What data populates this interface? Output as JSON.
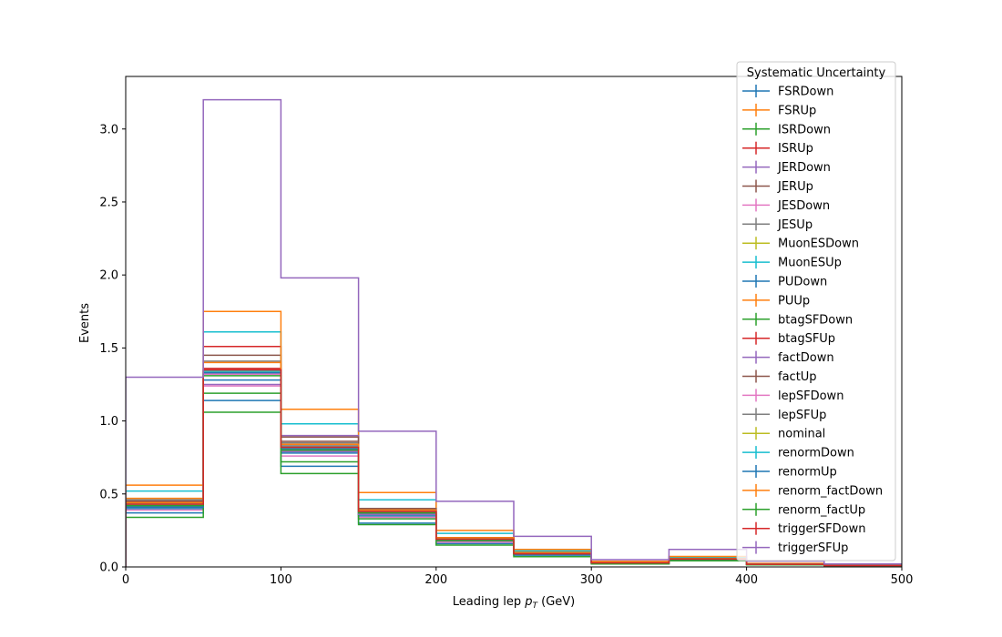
{
  "chart_data": {
    "type": "histogram-step",
    "xlabel_main": "Leading lep ",
    "xlabel_var": "p",
    "xlabel_sub": "T",
    "xlabel_unit": " (GeV)",
    "ylabel": "Events",
    "xlim": [
      0,
      500
    ],
    "ylim": [
      0,
      3.36
    ],
    "x_ticks": [
      0,
      100,
      200,
      300,
      400,
      500
    ],
    "y_ticks": [
      0.0,
      0.5,
      1.0,
      1.5,
      2.0,
      2.5,
      3.0
    ],
    "bin_edges": [
      0,
      50,
      100,
      150,
      200,
      250,
      300,
      350,
      400,
      450,
      500
    ],
    "legend_title": "Systematic Uncertainty",
    "legend_position": "top-right",
    "series": [
      {
        "name": "FSRDown",
        "color": "#1f77b4",
        "values": [
          0.37,
          1.14,
          0.69,
          0.3,
          0.16,
          0.08,
          0.02,
          0.045,
          0.015,
          0.008
        ]
      },
      {
        "name": "FSRUp",
        "color": "#ff7f0e",
        "values": [
          0.47,
          1.33,
          0.84,
          0.39,
          0.2,
          0.1,
          0.03,
          0.06,
          0.02,
          0.01
        ]
      },
      {
        "name": "ISRDown",
        "color": "#2ca02c",
        "values": [
          0.41,
          1.19,
          0.72,
          0.33,
          0.17,
          0.09,
          0.025,
          0.05,
          0.017,
          0.009
        ]
      },
      {
        "name": "ISRUp",
        "color": "#d62728",
        "values": [
          0.45,
          1.51,
          0.8,
          0.37,
          0.19,
          0.1,
          0.03,
          0.055,
          0.019,
          0.01
        ]
      },
      {
        "name": "JERDown",
        "color": "#9467bd",
        "values": [
          0.42,
          1.25,
          0.79,
          0.36,
          0.18,
          0.09,
          0.027,
          0.052,
          0.018,
          0.009
        ]
      },
      {
        "name": "JERUp",
        "color": "#8c564b",
        "values": [
          0.44,
          1.45,
          0.86,
          0.4,
          0.2,
          0.1,
          0.03,
          0.058,
          0.02,
          0.01
        ]
      },
      {
        "name": "JESDown",
        "color": "#e377c2",
        "values": [
          0.39,
          1.24,
          0.76,
          0.34,
          0.17,
          0.09,
          0.025,
          0.05,
          0.017,
          0.009
        ]
      },
      {
        "name": "JESUp",
        "color": "#7f7f7f",
        "values": [
          0.46,
          1.41,
          0.85,
          0.39,
          0.2,
          0.1,
          0.03,
          0.058,
          0.02,
          0.01
        ]
      },
      {
        "name": "MuonESDown",
        "color": "#bcbd22",
        "values": [
          0.43,
          1.34,
          0.81,
          0.37,
          0.19,
          0.09,
          0.028,
          0.054,
          0.018,
          0.009
        ]
      },
      {
        "name": "MuonESUp",
        "color": "#17becf",
        "values": [
          0.52,
          1.61,
          0.98,
          0.46,
          0.23,
          0.11,
          0.035,
          0.066,
          0.022,
          0.011
        ]
      },
      {
        "name": "PUDown",
        "color": "#1f77b4",
        "values": [
          0.4,
          1.28,
          0.78,
          0.35,
          0.18,
          0.09,
          0.026,
          0.051,
          0.017,
          0.009
        ]
      },
      {
        "name": "PUUp",
        "color": "#ff7f0e",
        "values": [
          0.56,
          1.75,
          1.08,
          0.51,
          0.25,
          0.12,
          0.038,
          0.072,
          0.024,
          0.012
        ]
      },
      {
        "name": "btagSFDown",
        "color": "#2ca02c",
        "values": [
          0.34,
          1.06,
          0.64,
          0.29,
          0.15,
          0.07,
          0.02,
          0.042,
          0.014,
          0.007
        ]
      },
      {
        "name": "btagSFUp",
        "color": "#d62728",
        "values": [
          0.44,
          1.36,
          0.82,
          0.38,
          0.19,
          0.1,
          0.03,
          0.056,
          0.019,
          0.01
        ]
      },
      {
        "name": "factDown",
        "color": "#9467bd",
        "values": [
          0.42,
          1.33,
          0.9,
          0.36,
          0.18,
          0.09,
          0.027,
          0.053,
          0.018,
          0.009
        ]
      },
      {
        "name": "factUp",
        "color": "#8c564b",
        "values": [
          0.45,
          1.35,
          0.89,
          0.4,
          0.2,
          0.1,
          0.03,
          0.058,
          0.02,
          0.01
        ]
      },
      {
        "name": "lepSFDown",
        "color": "#e377c2",
        "values": [
          0.41,
          1.32,
          0.8,
          0.37,
          0.18,
          0.09,
          0.027,
          0.053,
          0.018,
          0.009
        ]
      },
      {
        "name": "lepSFUp",
        "color": "#7f7f7f",
        "values": [
          0.43,
          1.35,
          0.83,
          0.38,
          0.19,
          0.1,
          0.029,
          0.055,
          0.019,
          0.01
        ]
      },
      {
        "name": "nominal",
        "color": "#bcbd22",
        "values": [
          0.43,
          1.34,
          0.82,
          0.38,
          0.19,
          0.09,
          0.028,
          0.054,
          0.018,
          0.009
        ]
      },
      {
        "name": "renormDown",
        "color": "#17becf",
        "values": [
          0.43,
          1.34,
          0.82,
          0.38,
          0.19,
          0.1,
          0.028,
          0.054,
          0.018,
          0.009
        ]
      },
      {
        "name": "renormUp",
        "color": "#1f77b4",
        "values": [
          0.41,
          1.33,
          0.81,
          0.37,
          0.18,
          0.09,
          0.027,
          0.053,
          0.018,
          0.009
        ]
      },
      {
        "name": "renorm_factDown",
        "color": "#ff7f0e",
        "values": [
          0.44,
          1.4,
          0.84,
          0.39,
          0.2,
          0.1,
          0.029,
          0.056,
          0.019,
          0.01
        ]
      },
      {
        "name": "renorm_factUp",
        "color": "#2ca02c",
        "values": [
          0.42,
          1.31,
          0.8,
          0.37,
          0.18,
          0.09,
          0.027,
          0.053,
          0.018,
          0.009
        ]
      },
      {
        "name": "triggerSFDown",
        "color": "#d62728",
        "values": [
          0.43,
          1.35,
          0.82,
          0.38,
          0.19,
          0.09,
          0.028,
          0.054,
          0.018,
          0.009
        ]
      },
      {
        "name": "triggerSFUp",
        "color": "#9467bd",
        "values": [
          1.3,
          3.2,
          1.98,
          0.93,
          0.45,
          0.21,
          0.05,
          0.12,
          0.04,
          0.02
        ]
      }
    ]
  }
}
